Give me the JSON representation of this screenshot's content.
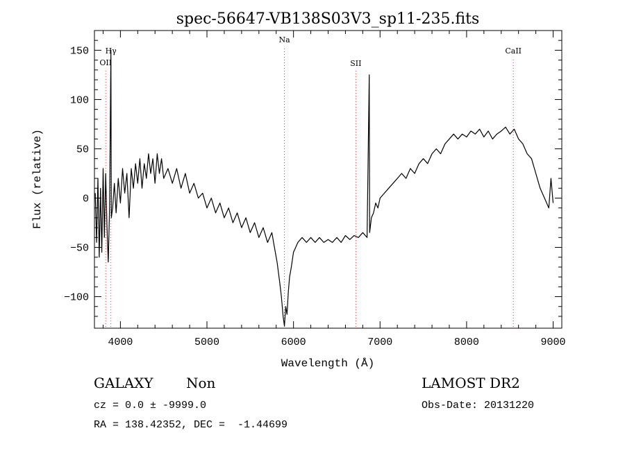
{
  "chart_data": {
    "type": "line",
    "title": "spec-56647-VB138S03V3_sp11-235.fits",
    "xlabel": "Wavelength (Å)",
    "ylabel": "Flux (relative)",
    "xlim": [
      3700,
      9100
    ],
    "ylim": [
      -132,
      170
    ],
    "x_ticks": [
      4000,
      5000,
      6000,
      7000,
      8000,
      9000
    ],
    "y_ticks": [
      -100,
      -50,
      0,
      50,
      100,
      150
    ],
    "grid": false,
    "line_color": "#000000",
    "marker_color": "#d04040",
    "line_markers": [
      {
        "label": "OII",
        "x": 3830
      },
      {
        "label": "Hγ",
        "x": 3890
      },
      {
        "label": "Na",
        "x": 5895
      },
      {
        "label": "SII",
        "x": 6720
      },
      {
        "label": "CaII",
        "x": 8540
      }
    ],
    "series": [
      {
        "values": [
          [
            3710,
            5
          ],
          [
            3725,
            -45
          ],
          [
            3740,
            20
          ],
          [
            3755,
            -60
          ],
          [
            3770,
            10
          ],
          [
            3785,
            -55
          ],
          [
            3800,
            30
          ],
          [
            3815,
            -40
          ],
          [
            3830,
            25
          ],
          [
            3845,
            -30
          ],
          [
            3860,
            -65
          ],
          [
            3875,
            -10
          ],
          [
            3890,
            150
          ],
          [
            3895,
            -20
          ],
          [
            3910,
            -10
          ],
          [
            3930,
            15
          ],
          [
            3950,
            -15
          ],
          [
            3975,
            20
          ],
          [
            4000,
            -5
          ],
          [
            4025,
            30
          ],
          [
            4050,
            5
          ],
          [
            4075,
            25
          ],
          [
            4100,
            -20
          ],
          [
            4125,
            30
          ],
          [
            4150,
            10
          ],
          [
            4175,
            35
          ],
          [
            4200,
            15
          ],
          [
            4225,
            40
          ],
          [
            4250,
            10
          ],
          [
            4275,
            35
          ],
          [
            4300,
            20
          ],
          [
            4325,
            45
          ],
          [
            4350,
            25
          ],
          [
            4375,
            40
          ],
          [
            4400,
            15
          ],
          [
            4425,
            45
          ],
          [
            4450,
            25
          ],
          [
            4475,
            40
          ],
          [
            4500,
            20
          ],
          [
            4550,
            30
          ],
          [
            4600,
            15
          ],
          [
            4650,
            30
          ],
          [
            4700,
            10
          ],
          [
            4750,
            25
          ],
          [
            4800,
            5
          ],
          [
            4850,
            15
          ],
          [
            4900,
            0
          ],
          [
            4950,
            5
          ],
          [
            5000,
            -10
          ],
          [
            5050,
            0
          ],
          [
            5100,
            -15
          ],
          [
            5150,
            -5
          ],
          [
            5200,
            -20
          ],
          [
            5250,
            -10
          ],
          [
            5300,
            -25
          ],
          [
            5350,
            -15
          ],
          [
            5400,
            -30
          ],
          [
            5450,
            -20
          ],
          [
            5500,
            -35
          ],
          [
            5550,
            -25
          ],
          [
            5600,
            -40
          ],
          [
            5650,
            -30
          ],
          [
            5700,
            -45
          ],
          [
            5750,
            -35
          ],
          [
            5780,
            -50
          ],
          [
            5810,
            -65
          ],
          [
            5840,
            -85
          ],
          [
            5860,
            -100
          ],
          [
            5880,
            -120
          ],
          [
            5895,
            -130
          ],
          [
            5910,
            -110
          ],
          [
            5925,
            -118
          ],
          [
            5940,
            -95
          ],
          [
            5955,
            -80
          ],
          [
            5975,
            -70
          ],
          [
            6000,
            -55
          ],
          [
            6025,
            -50
          ],
          [
            6050,
            -45
          ],
          [
            6100,
            -40
          ],
          [
            6150,
            -45
          ],
          [
            6200,
            -40
          ],
          [
            6250,
            -45
          ],
          [
            6300,
            -40
          ],
          [
            6350,
            -45
          ],
          [
            6400,
            -42
          ],
          [
            6450,
            -45
          ],
          [
            6500,
            -40
          ],
          [
            6550,
            -45
          ],
          [
            6600,
            -38
          ],
          [
            6650,
            -42
          ],
          [
            6700,
            -38
          ],
          [
            6750,
            -40
          ],
          [
            6800,
            -35
          ],
          [
            6850,
            -40
          ],
          [
            6875,
            125
          ],
          [
            6880,
            -35
          ],
          [
            6900,
            -20
          ],
          [
            6925,
            -15
          ],
          [
            6950,
            -5
          ],
          [
            6975,
            -10
          ],
          [
            7000,
            0
          ],
          [
            7050,
            5
          ],
          [
            7100,
            10
          ],
          [
            7150,
            15
          ],
          [
            7200,
            20
          ],
          [
            7250,
            25
          ],
          [
            7300,
            20
          ],
          [
            7350,
            30
          ],
          [
            7400,
            25
          ],
          [
            7450,
            35
          ],
          [
            7500,
            40
          ],
          [
            7550,
            35
          ],
          [
            7600,
            45
          ],
          [
            7650,
            50
          ],
          [
            7700,
            45
          ],
          [
            7750,
            55
          ],
          [
            7800,
            60
          ],
          [
            7850,
            65
          ],
          [
            7900,
            60
          ],
          [
            7950,
            65
          ],
          [
            8000,
            62
          ],
          [
            8050,
            68
          ],
          [
            8100,
            65
          ],
          [
            8150,
            70
          ],
          [
            8200,
            62
          ],
          [
            8250,
            68
          ],
          [
            8300,
            60
          ],
          [
            8350,
            65
          ],
          [
            8400,
            68
          ],
          [
            8450,
            72
          ],
          [
            8500,
            65
          ],
          [
            8550,
            70
          ],
          [
            8600,
            60
          ],
          [
            8650,
            55
          ],
          [
            8700,
            45
          ],
          [
            8750,
            40
          ],
          [
            8800,
            25
          ],
          [
            8850,
            10
          ],
          [
            8900,
            0
          ],
          [
            8950,
            -10
          ],
          [
            8975,
            20
          ],
          [
            9000,
            -5
          ]
        ]
      }
    ]
  },
  "info": {
    "object_class": "GALAXY",
    "object_subclass": "Non",
    "survey": "LAMOST DR2",
    "redshift": "cz = 0.0 ± -9999.0",
    "obs_date": "Obs-Date: 20131220",
    "coords": "RA = 138.42352, DEC =  -1.44699"
  }
}
